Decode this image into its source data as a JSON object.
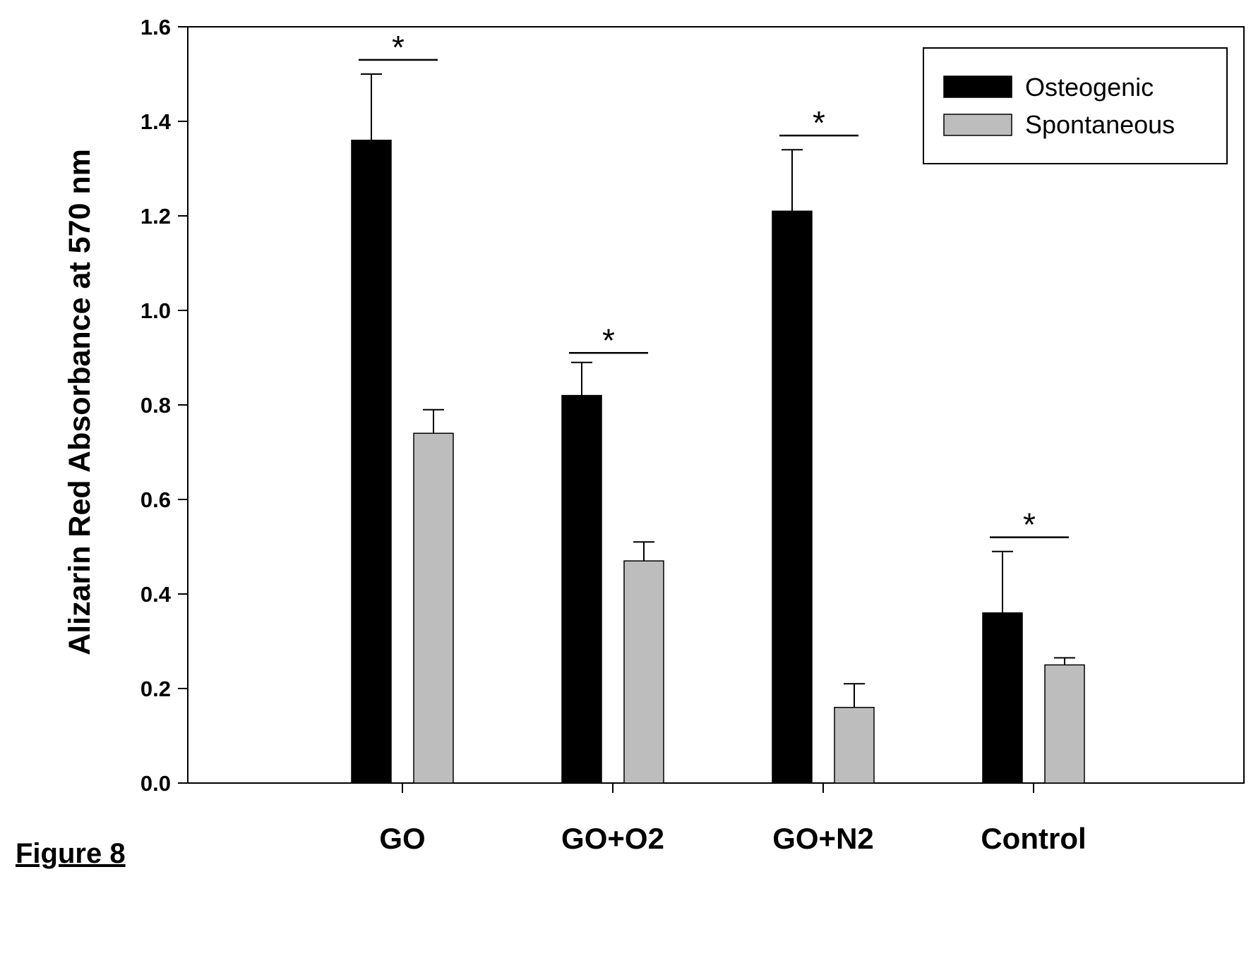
{
  "caption": "Figure 8",
  "chart_data": {
    "type": "bar",
    "title": "",
    "xlabel": "",
    "ylabel": "Alizarin Red Absorbance at 570 nm",
    "ylim": [
      0,
      1.6
    ],
    "yticks": [
      "0.0",
      "0.2",
      "0.4",
      "0.6",
      "0.8",
      "1.0",
      "1.2",
      "1.4",
      "1.6"
    ],
    "categories": [
      "GO",
      "GO+O2",
      "GO+N2",
      "Control"
    ],
    "series": [
      {
        "name": "Osteogenic",
        "color": "#000000",
        "values": [
          1.36,
          0.82,
          1.21,
          0.36
        ],
        "errors": [
          0.14,
          0.07,
          0.13,
          0.13
        ]
      },
      {
        "name": "Spontaneous",
        "color": "#bdbdbd",
        "values": [
          0.74,
          0.47,
          0.16,
          0.25
        ],
        "errors": [
          0.05,
          0.04,
          0.05,
          0.015
        ]
      }
    ],
    "significance": [
      {
        "category": "GO",
        "label": "*",
        "level": 1.53
      },
      {
        "category": "GO+O2",
        "label": "*",
        "level": 0.91
      },
      {
        "category": "GO+N2",
        "label": "*",
        "level": 1.37
      },
      {
        "category": "Control",
        "label": "*",
        "level": 0.52
      }
    ],
    "legend_position": "top-right",
    "grid": false
  }
}
